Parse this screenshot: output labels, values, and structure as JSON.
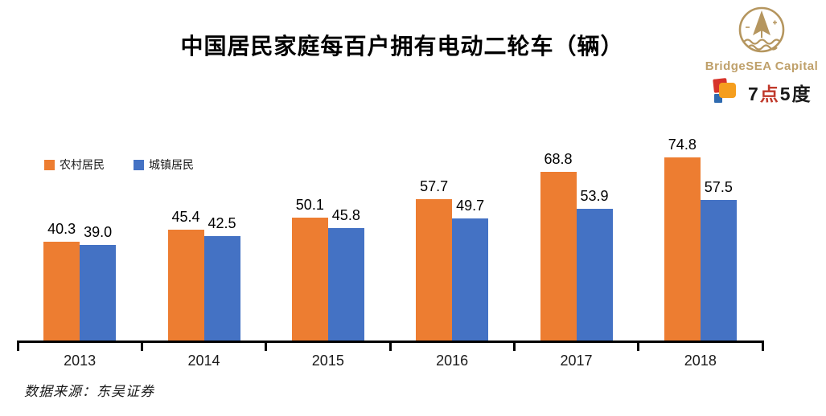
{
  "title": "中国居民家庭每百户拥有电动二轮车（辆）",
  "source": "数据来源：东吴证券",
  "logos": {
    "bridgesea_label": "BridgeSEA Capital",
    "qi_dian": {
      "p1": "7",
      "p2": "点",
      "p3": "5",
      "p4": "度"
    }
  },
  "colors": {
    "rural_orange": "#ED7D31",
    "urban_blue": "#4472C4",
    "brand_gold": "#BFA06A",
    "brand_red": "#D7332A",
    "brand_orange": "#F59E1E",
    "brand_blue": "#2F6BB0",
    "axis_black": "#000000"
  },
  "chart_data": {
    "type": "bar",
    "title": "中国居民家庭每百户拥有电动二轮车（辆）",
    "categories": [
      "2013",
      "2014",
      "2015",
      "2016",
      "2017",
      "2018"
    ],
    "series": [
      {
        "name": "农村居民",
        "color": "#ED7D31",
        "values": [
          40.3,
          45.4,
          50.1,
          57.7,
          68.8,
          74.8
        ]
      },
      {
        "name": "城镇居民",
        "color": "#4472C4",
        "values": [
          39.0,
          42.5,
          45.8,
          49.7,
          53.9,
          57.5
        ]
      }
    ],
    "xlabel": "",
    "ylabel": "",
    "ylim": [
      0,
      90
    ],
    "grid": false,
    "legend_position": "top-left",
    "data_labels": true
  }
}
